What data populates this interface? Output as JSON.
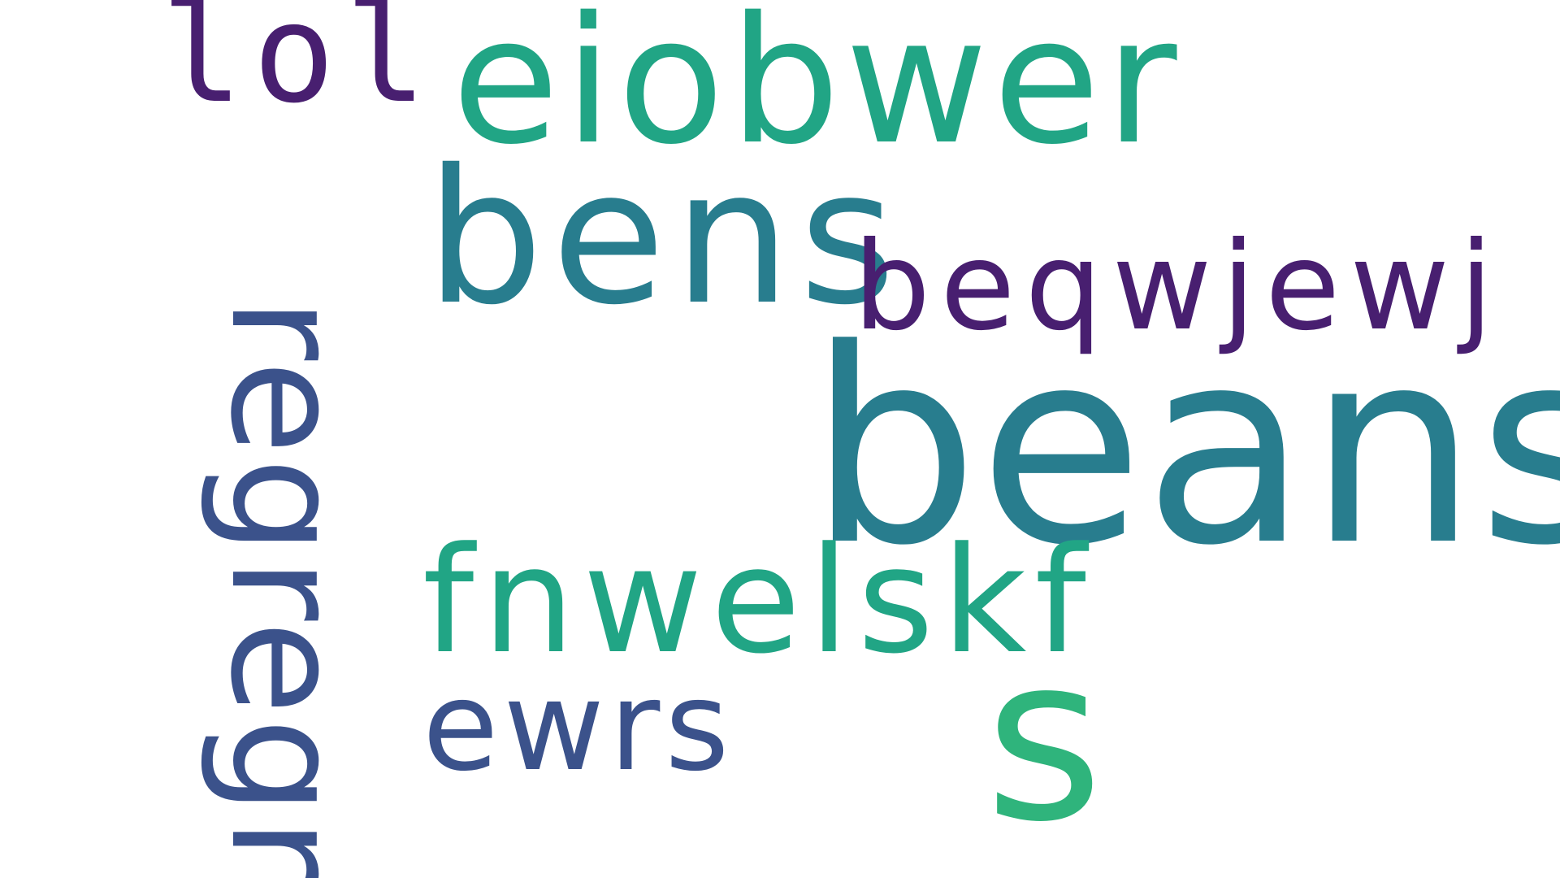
{
  "words": {
    "lol": "lol",
    "eiobwer": "eiobwer",
    "bens": "bens",
    "beqwjewj": "beqwjewj",
    "beans": "beans",
    "regregr": "regregr",
    "fnwelskf": "fnwelskf",
    "ewrs": "ewrs",
    "s": "s"
  },
  "palette": {
    "purple": "#481f70",
    "teal": "#21a585",
    "cyan": "#287d8e",
    "blue": "#3b528b",
    "green": "#2fb47c"
  }
}
